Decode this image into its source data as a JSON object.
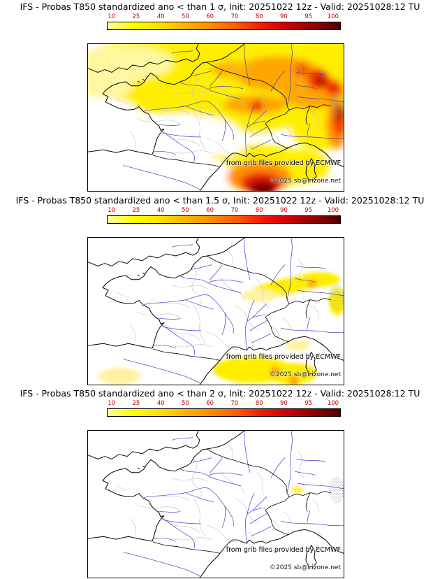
{
  "colorbar": {
    "ticks": [
      "10",
      "25",
      "40",
      "50",
      "60",
      "70",
      "80",
      "90",
      "95",
      "100"
    ],
    "tick_color": "#c00000",
    "gradient": [
      "#ffffa0",
      "#ffff00",
      "#ffe000",
      "#ffb400",
      "#ff8c00",
      "#ff5a00",
      "#f01800",
      "#c80000",
      "#8c0000",
      "#500000"
    ]
  },
  "map_style": {
    "coast_color": "#000000",
    "border_color": "#000000",
    "river_color": "#3c3ccd",
    "admin_color": "#c3c3c3"
  },
  "panels": [
    {
      "title": "IFS - Probas T850  standardized ano < than 1 σ, Init: 20251022 12z - Valid: 20251028:12 TU",
      "threshold_sigma": "1",
      "credit_provider": "from grib files provided by ECMWF",
      "credit_copyright": "©2025 sb@irizone.net"
    },
    {
      "title": "IFS - Probas T850  standardized ano < than 1.5 σ, Init: 20251022 12z - Valid: 20251028:12 TU",
      "threshold_sigma": "1.5",
      "credit_provider": "from grib files provided by ECMWF",
      "credit_copyright": "©2025 sb@irizone.net"
    },
    {
      "title": "IFS - Probas T850  standardized ano < than 2 σ, Init: 20251022 12z - Valid: 20251028:12 TU",
      "threshold_sigma": "2",
      "credit_provider": "from grib files provided by ECMWF",
      "credit_copyright": "©2025 sb@irizone.net"
    }
  ]
}
